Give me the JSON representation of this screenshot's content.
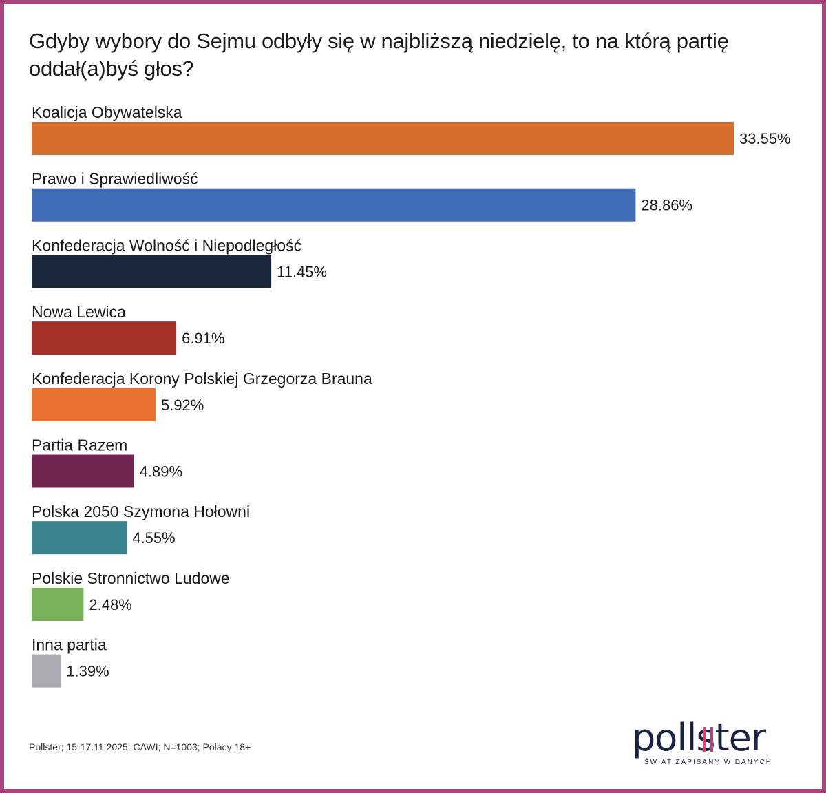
{
  "title": "Gdyby wybory do Sejmu odbyły się w najbliższą niedzielę, to na którą partię oddał(a)byś głos?",
  "chart_data": {
    "type": "bar",
    "orientation": "horizontal",
    "categories": [
      "Koalicja Obywatelska",
      "Prawo i Sprawiedliwość",
      "Konfederacja Wolność i Niepodległość",
      "Nowa Lewica",
      "Konfederacja Korony Polskiej Grzegorza Brauna",
      "Partia Razem",
      "Polska 2050 Szymona Hołowni",
      "Polskie Stronnictwo Ludowe",
      "Inna partia"
    ],
    "values": [
      33.55,
      28.86,
      11.45,
      6.91,
      5.92,
      4.89,
      4.55,
      2.48,
      1.39
    ],
    "value_labels": [
      "33.55%",
      "28.86%",
      "11.45%",
      "6.91%",
      "5.92%",
      "4.89%",
      "4.55%",
      "2.48%",
      "1.39%"
    ],
    "colors": [
      "#d56d2b",
      "#416db7",
      "#1b263c",
      "#a33128",
      "#e9712f",
      "#722550",
      "#3c8590",
      "#77b259",
      "#a9abaf"
    ],
    "xlim": [
      0,
      33.55
    ],
    "grid": false,
    "legend": "none"
  },
  "footer": {
    "source": "Pollster; 15-17.11.2025; CAWI; N=1003; Polacy 18+"
  },
  "logo": {
    "word": "pollster",
    "tagline": "ŚWIAT ZAPISANY W DANYCH",
    "accent_colors": [
      "#e33d6f",
      "#a8457a"
    ]
  },
  "frame_color": "#a8457a"
}
